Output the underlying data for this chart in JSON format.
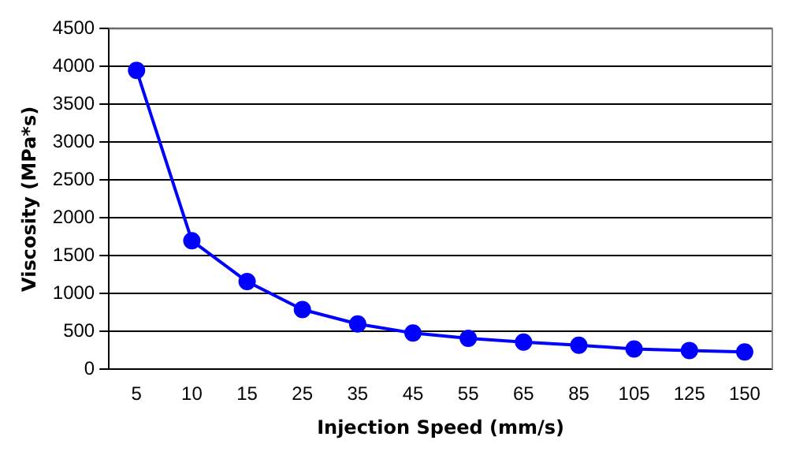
{
  "chart_data": {
    "type": "line",
    "xlabel": "Injection Speed (mm/s)",
    "ylabel": "Viscosity (MPa*s)",
    "categories": [
      "5",
      "10",
      "15",
      "25",
      "35",
      "45",
      "55",
      "65",
      "85",
      "105",
      "125",
      "150"
    ],
    "series": [
      {
        "color": "#0000ff",
        "values": [
          3950,
          1700,
          1160,
          790,
          600,
          480,
          410,
          360,
          320,
          270,
          250,
          230
        ]
      }
    ],
    "ylim": [
      0,
      4500
    ],
    "yticks": [
      0,
      500,
      1000,
      1500,
      2000,
      2500,
      3000,
      3500,
      4000,
      4500
    ],
    "grid": "y",
    "marker": "circle",
    "line_style": "solid",
    "legend": false
  }
}
